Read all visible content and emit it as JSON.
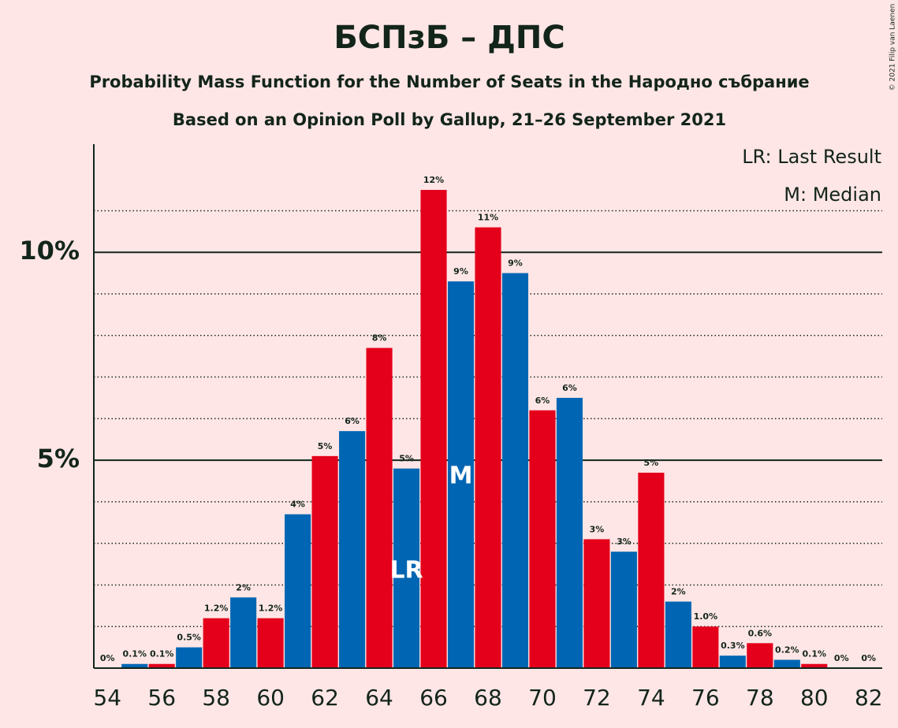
{
  "chart_data": {
    "type": "bar",
    "title": "БСПзБ – ДПС",
    "subtitle": "Probability Mass Function for the Number of Seats in the Народно събрание",
    "subtitle2": "Based on an Opinion Poll by Gallup, 21–26 September 2021",
    "copyright": "© 2021 Filip van Laenen",
    "legend": [
      "LR: Last Result",
      "M: Median"
    ],
    "x": [
      54,
      55,
      56,
      57,
      58,
      59,
      60,
      61,
      62,
      63,
      64,
      65,
      66,
      67,
      68,
      69,
      70,
      71,
      72,
      73,
      74,
      75,
      76,
      77,
      78,
      79,
      80,
      81,
      82
    ],
    "values": [
      0,
      0.1,
      0.1,
      0.5,
      1.2,
      1.7,
      1.2,
      3.7,
      5.1,
      5.7,
      7.7,
      4.8,
      11.5,
      9.3,
      10.6,
      9.5,
      6.2,
      6.5,
      3.1,
      2.8,
      4.7,
      1.6,
      1.0,
      0.3,
      0.6,
      0.2,
      0.1,
      0,
      0
    ],
    "value_labels": [
      "0%",
      "0.1%",
      "0.1%",
      "0.5%",
      "1.2%",
      "2%",
      "1.2%",
      "4%",
      "5%",
      "6%",
      "8%",
      "5%",
      "12%",
      "9%",
      "11%",
      "9%",
      "6%",
      "6%",
      "3%",
      "3%",
      "5%",
      "2%",
      "1.0%",
      "0.3%",
      "0.6%",
      "0.2%",
      "0.1%",
      "0%",
      "0%"
    ],
    "colors": [
      "#e4001b",
      "#0066b3",
      "#e4001b",
      "#0066b3",
      "#e4001b",
      "#0066b3",
      "#e4001b",
      "#0066b3",
      "#e4001b",
      "#0066b3",
      "#e4001b",
      "#0066b3",
      "#e4001b",
      "#0066b3",
      "#e4001b",
      "#0066b3",
      "#e4001b",
      "#0066b3",
      "#e4001b",
      "#0066b3",
      "#e4001b",
      "#0066b3",
      "#e4001b",
      "#0066b3",
      "#e4001b",
      "#0066b3",
      "#e4001b",
      "#0066b3",
      "#e4001b"
    ],
    "xlim": [
      53.5,
      82.5
    ],
    "xticks": [
      54,
      56,
      58,
      60,
      62,
      64,
      66,
      68,
      70,
      72,
      74,
      76,
      78,
      80,
      82
    ],
    "ylim": [
      0,
      12.6
    ],
    "yticks": [
      {
        "value": 5,
        "label": "5%"
      },
      {
        "value": 10,
        "label": "10%"
      }
    ],
    "minor_yticks": [
      1,
      2,
      3,
      4,
      6,
      7,
      8,
      9,
      11
    ],
    "annotations": [
      {
        "text": "LR",
        "x": 65
      },
      {
        "text": "M",
        "x": 67
      }
    ]
  }
}
